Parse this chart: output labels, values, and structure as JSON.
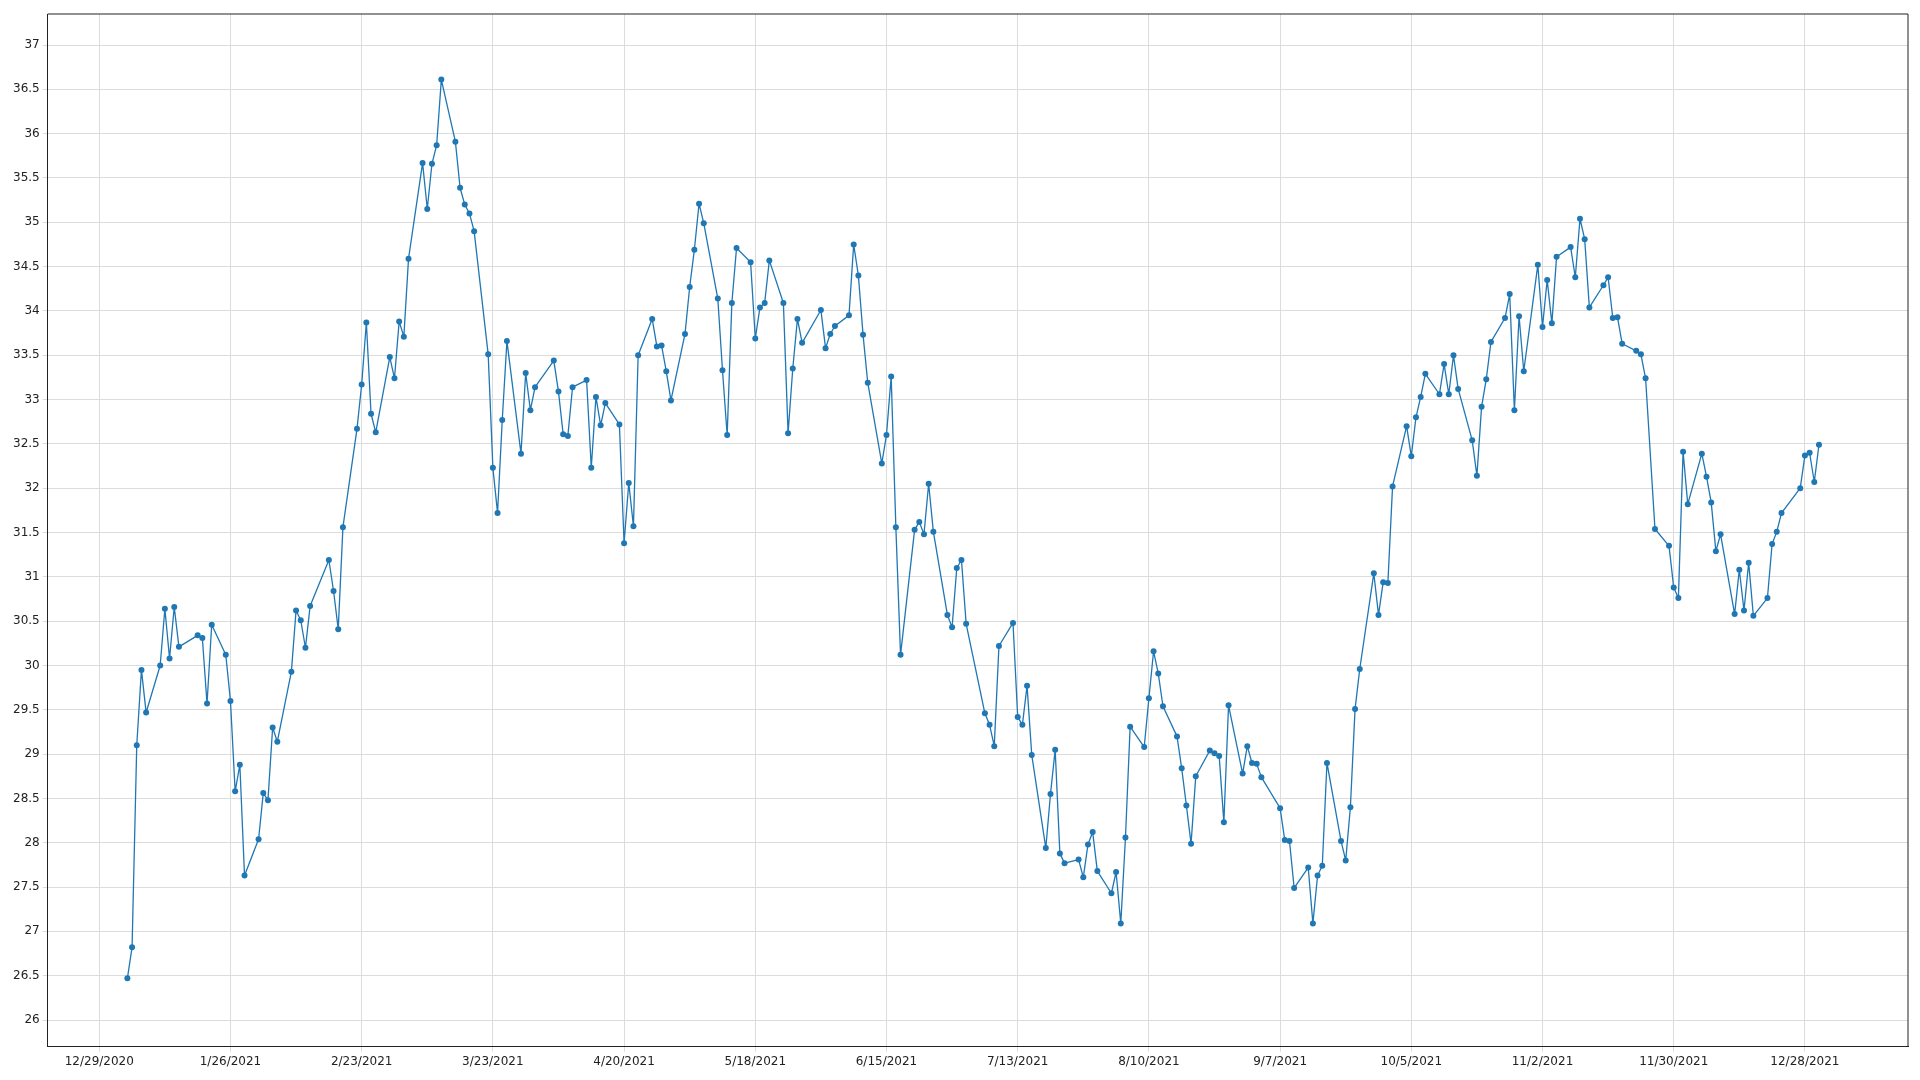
{
  "chart_data": {
    "type": "line",
    "marker": "circle",
    "line_style": "solid",
    "grid": true,
    "legend": false,
    "xlim": [
      "2020-12-18",
      "2022-01-19"
    ],
    "xticks": [
      {
        "value": "2020-12-29",
        "label": "12/29/2020"
      },
      {
        "value": "2021-01-26",
        "label": "1/26/2021"
      },
      {
        "value": "2021-02-23",
        "label": "2/23/2021"
      },
      {
        "value": "2021-03-23",
        "label": "3/23/2021"
      },
      {
        "value": "2021-04-20",
        "label": "4/20/2021"
      },
      {
        "value": "2021-05-18",
        "label": "5/18/2021"
      },
      {
        "value": "2021-06-15",
        "label": "6/15/2021"
      },
      {
        "value": "2021-07-13",
        "label": "7/13/2021"
      },
      {
        "value": "2021-08-10",
        "label": "8/10/2021"
      },
      {
        "value": "2021-09-07",
        "label": "9/7/2021"
      },
      {
        "value": "2021-10-05",
        "label": "10/5/2021"
      },
      {
        "value": "2021-11-02",
        "label": "11/2/2021"
      },
      {
        "value": "2021-11-30",
        "label": "11/30/2021"
      },
      {
        "value": "2021-12-28",
        "label": "12/28/2021"
      }
    ],
    "ylim": [
      25.7,
      37.35
    ],
    "yticks": [
      26,
      26.5,
      27,
      27.5,
      28,
      28.5,
      29,
      29.5,
      30,
      30.5,
      31,
      31.5,
      32,
      32.5,
      33,
      33.5,
      34,
      34.5,
      35,
      35.5,
      36,
      36.5,
      37
    ],
    "x": [
      "2021-01-04",
      "2021-01-05",
      "2021-01-06",
      "2021-01-07",
      "2021-01-08",
      "2021-01-11",
      "2021-01-12",
      "2021-01-13",
      "2021-01-14",
      "2021-01-15",
      "2021-01-19",
      "2021-01-20",
      "2021-01-21",
      "2021-01-22",
      "2021-01-25",
      "2021-01-26",
      "2021-01-27",
      "2021-01-28",
      "2021-01-29",
      "2021-02-01",
      "2021-02-02",
      "2021-02-03",
      "2021-02-04",
      "2021-02-05",
      "2021-02-08",
      "2021-02-09",
      "2021-02-10",
      "2021-02-11",
      "2021-02-12",
      "2021-02-16",
      "2021-02-17",
      "2021-02-18",
      "2021-02-19",
      "2021-02-22",
      "2021-02-23",
      "2021-02-24",
      "2021-02-25",
      "2021-02-26",
      "2021-03-01",
      "2021-03-02",
      "2021-03-03",
      "2021-03-04",
      "2021-03-05",
      "2021-03-08",
      "2021-03-09",
      "2021-03-10",
      "2021-03-11",
      "2021-03-12",
      "2021-03-15",
      "2021-03-16",
      "2021-03-17",
      "2021-03-18",
      "2021-03-19",
      "2021-03-22",
      "2021-03-23",
      "2021-03-24",
      "2021-03-25",
      "2021-03-26",
      "2021-03-29",
      "2021-03-30",
      "2021-03-31",
      "2021-04-01",
      "2021-04-05",
      "2021-04-06",
      "2021-04-07",
      "2021-04-08",
      "2021-04-09",
      "2021-04-12",
      "2021-04-13",
      "2021-04-14",
      "2021-04-15",
      "2021-04-16",
      "2021-04-19",
      "2021-04-20",
      "2021-04-21",
      "2021-04-22",
      "2021-04-23",
      "2021-04-26",
      "2021-04-27",
      "2021-04-28",
      "2021-04-29",
      "2021-04-30",
      "2021-05-03",
      "2021-05-04",
      "2021-05-05",
      "2021-05-06",
      "2021-05-07",
      "2021-05-10",
      "2021-05-11",
      "2021-05-12",
      "2021-05-13",
      "2021-05-14",
      "2021-05-17",
      "2021-05-18",
      "2021-05-19",
      "2021-05-20",
      "2021-05-21",
      "2021-05-24",
      "2021-05-25",
      "2021-05-26",
      "2021-05-27",
      "2021-05-28",
      "2021-06-01",
      "2021-06-02",
      "2021-06-03",
      "2021-06-04",
      "2021-06-07",
      "2021-06-08",
      "2021-06-09",
      "2021-06-10",
      "2021-06-11",
      "2021-06-14",
      "2021-06-15",
      "2021-06-16",
      "2021-06-17",
      "2021-06-18",
      "2021-06-21",
      "2021-06-22",
      "2021-06-23",
      "2021-06-24",
      "2021-06-25",
      "2021-06-28",
      "2021-06-29",
      "2021-06-30",
      "2021-07-01",
      "2021-07-02",
      "2021-07-06",
      "2021-07-07",
      "2021-07-08",
      "2021-07-09",
      "2021-07-12",
      "2021-07-13",
      "2021-07-14",
      "2021-07-15",
      "2021-07-16",
      "2021-07-19",
      "2021-07-20",
      "2021-07-21",
      "2021-07-22",
      "2021-07-23",
      "2021-07-26",
      "2021-07-27",
      "2021-07-28",
      "2021-07-29",
      "2021-07-30",
      "2021-08-02",
      "2021-08-03",
      "2021-08-04",
      "2021-08-05",
      "2021-08-06",
      "2021-08-09",
      "2021-08-10",
      "2021-08-11",
      "2021-08-12",
      "2021-08-13",
      "2021-08-16",
      "2021-08-17",
      "2021-08-18",
      "2021-08-19",
      "2021-08-20",
      "2021-08-23",
      "2021-08-24",
      "2021-08-25",
      "2021-08-26",
      "2021-08-27",
      "2021-08-30",
      "2021-08-31",
      "2021-09-01",
      "2021-09-02",
      "2021-09-03",
      "2021-09-07",
      "2021-09-08",
      "2021-09-09",
      "2021-09-10",
      "2021-09-13",
      "2021-09-14",
      "2021-09-15",
      "2021-09-16",
      "2021-09-17",
      "2021-09-20",
      "2021-09-21",
      "2021-09-22",
      "2021-09-23",
      "2021-09-24",
      "2021-09-27",
      "2021-09-28",
      "2021-09-29",
      "2021-09-30",
      "2021-10-01",
      "2021-10-04",
      "2021-10-05",
      "2021-10-06",
      "2021-10-07",
      "2021-10-08",
      "2021-10-11",
      "2021-10-12",
      "2021-10-13",
      "2021-10-14",
      "2021-10-15",
      "2021-10-18",
      "2021-10-19",
      "2021-10-20",
      "2021-10-21",
      "2021-10-22",
      "2021-10-25",
      "2021-10-26",
      "2021-10-27",
      "2021-10-28",
      "2021-10-29",
      "2021-11-01",
      "2021-11-02",
      "2021-11-03",
      "2021-11-04",
      "2021-11-05",
      "2021-11-08",
      "2021-11-09",
      "2021-11-10",
      "2021-11-11",
      "2021-11-12",
      "2021-11-15",
      "2021-11-16",
      "2021-11-17",
      "2021-11-18",
      "2021-11-19",
      "2021-11-22",
      "2021-11-23",
      "2021-11-24",
      "2021-11-26",
      "2021-11-29",
      "2021-11-30",
      "2021-12-01",
      "2021-12-02",
      "2021-12-03",
      "2021-12-06",
      "2021-12-07",
      "2021-12-08",
      "2021-12-09",
      "2021-12-10",
      "2021-12-13",
      "2021-12-14",
      "2021-12-15",
      "2021-12-16",
      "2021-12-17",
      "2021-12-20",
      "2021-12-21",
      "2021-12-22",
      "2021-12-23",
      "2021-12-27",
      "2021-12-28",
      "2021-12-29",
      "2021-12-30",
      "2021-12-31"
    ],
    "series": [
      {
        "color": "#1f77b4",
        "values": [
          26.47,
          26.82,
          29.1,
          29.95,
          29.47,
          30.0,
          30.64,
          30.08,
          30.66,
          30.21,
          30.34,
          30.31,
          29.57,
          30.46,
          30.12,
          29.6,
          28.58,
          28.88,
          27.63,
          28.04,
          28.56,
          28.48,
          29.3,
          29.14,
          29.93,
          30.62,
          30.51,
          30.2,
          30.67,
          31.19,
          30.84,
          30.41,
          31.56,
          32.67,
          33.17,
          33.87,
          32.84,
          32.63,
          33.48,
          33.24,
          33.88,
          33.71,
          34.59,
          35.67,
          35.15,
          35.66,
          35.87,
          36.61,
          35.91,
          35.39,
          35.2,
          35.1,
          34.9,
          33.51,
          32.23,
          31.72,
          32.77,
          33.66,
          32.39,
          33.3,
          32.88,
          33.14,
          33.44,
          33.09,
          32.61,
          32.59,
          33.14,
          33.22,
          32.23,
          33.03,
          32.71,
          32.96,
          32.72,
          31.38,
          32.06,
          31.57,
          33.5,
          33.91,
          33.6,
          33.61,
          33.32,
          32.99,
          33.74,
          34.27,
          34.69,
          35.21,
          34.99,
          34.14,
          33.33,
          32.6,
          34.09,
          34.71,
          34.55,
          33.69,
          34.04,
          34.09,
          34.57,
          34.09,
          32.62,
          33.35,
          33.91,
          33.64,
          34.01,
          33.58,
          33.74,
          33.83,
          33.95,
          34.75,
          34.4,
          33.73,
          33.19,
          32.28,
          32.6,
          33.26,
          31.56,
          30.12,
          31.53,
          31.62,
          31.48,
          32.05,
          31.51,
          30.57,
          30.43,
          31.1,
          31.19,
          30.47,
          29.46,
          29.33,
          29.09,
          30.22,
          30.48,
          29.42,
          29.33,
          29.77,
          28.99,
          27.94,
          28.55,
          29.05,
          27.88,
          27.77,
          27.81,
          27.61,
          27.98,
          28.12,
          27.68,
          27.43,
          27.67,
          27.09,
          28.06,
          29.31,
          29.08,
          29.63,
          30.16,
          29.91,
          29.54,
          29.2,
          28.84,
          28.42,
          27.99,
          28.75,
          29.04,
          29.01,
          28.98,
          28.23,
          29.55,
          28.78,
          29.09,
          28.9,
          28.89,
          28.74,
          28.39,
          28.03,
          28.02,
          27.49,
          27.72,
          27.09,
          27.63,
          27.74,
          28.9,
          28.02,
          27.8,
          28.4,
          29.51,
          29.96,
          31.04,
          30.57,
          30.94,
          30.93,
          32.02,
          32.7,
          32.36,
          32.8,
          33.03,
          33.29,
          33.06,
          33.4,
          33.06,
          33.5,
          33.12,
          32.54,
          32.14,
          32.92,
          33.23,
          33.65,
          33.92,
          34.19,
          32.88,
          33.94,
          33.32,
          34.52,
          33.82,
          34.35,
          33.86,
          34.61,
          34.72,
          34.38,
          35.04,
          34.81,
          34.04,
          34.29,
          34.38,
          33.92,
          33.93,
          33.63,
          33.55,
          33.51,
          33.24,
          31.54,
          31.35,
          30.88,
          30.76,
          32.41,
          31.82,
          32.39,
          32.13,
          31.84,
          31.29,
          31.48,
          30.58,
          31.08,
          30.62,
          31.16,
          30.56,
          30.76,
          31.37,
          31.51,
          31.72,
          32.0,
          32.37,
          32.4,
          32.07,
          32.49
        ]
      }
    ]
  }
}
